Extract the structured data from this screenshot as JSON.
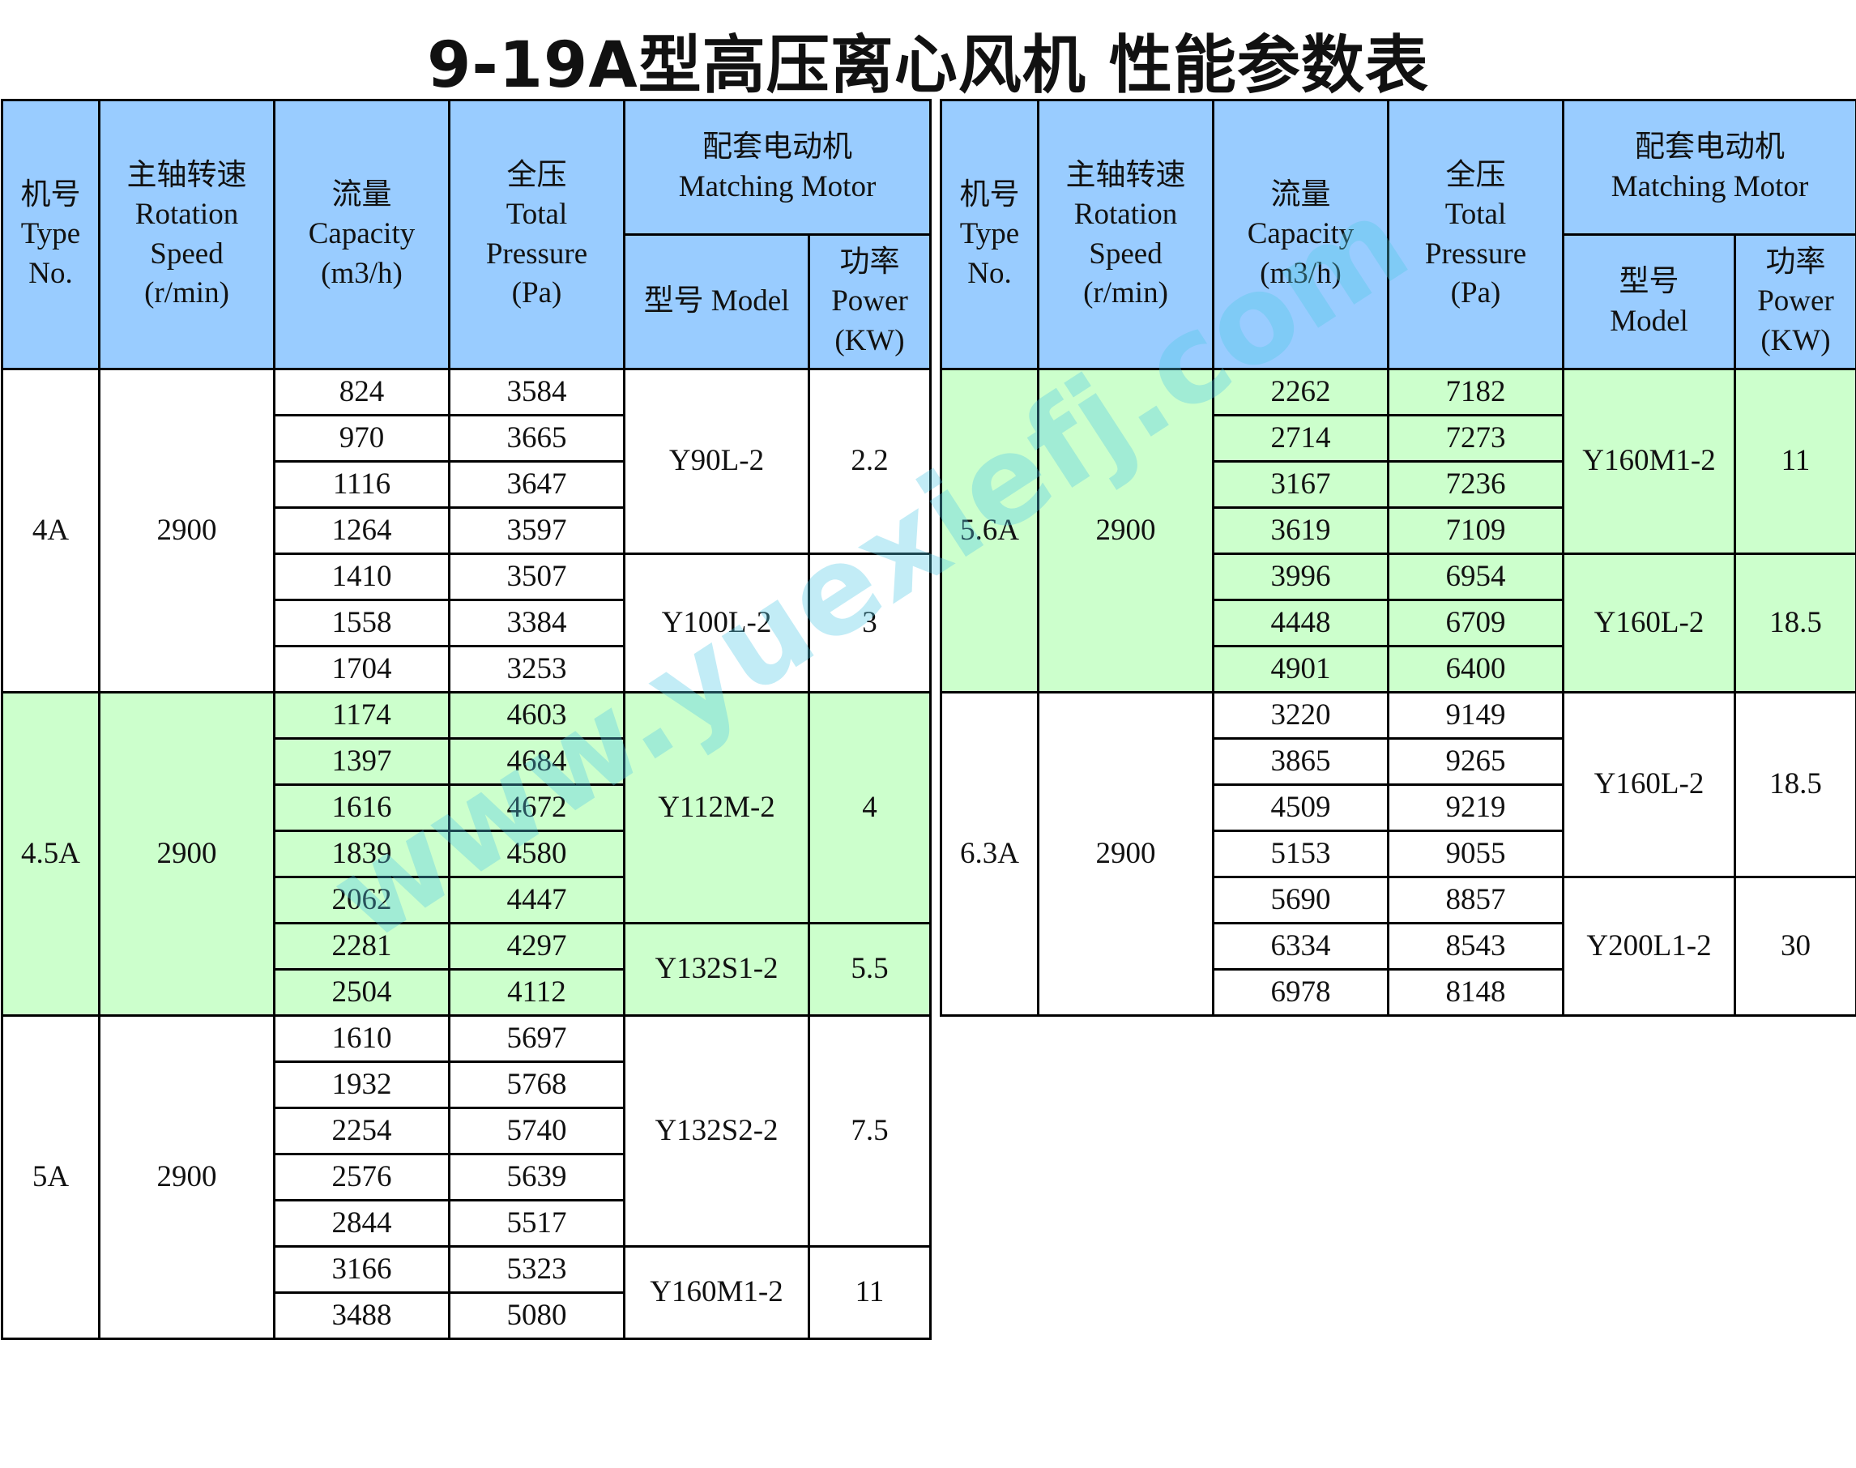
{
  "title": "9-19A型高压离心风机 性能参数表",
  "watermark": "www.yuexiefj.com",
  "colors": {
    "header": "#99ccff",
    "highlight": "#ccffcc",
    "plain": "#ffffff"
  },
  "headers": {
    "type": "机号\nType\nNo.",
    "speed": "主轴转速\nRotation\nSpeed\n(r/min)",
    "capacity": "流量\nCapacity\n(m3/h)",
    "pressure": "全压\nTotal\nPressure\n(Pa)",
    "motor": "配套电动机\nMatching Motor",
    "model_left": "型号 Model",
    "model_right": "型号\nModel",
    "power": "功率\nPower\n(KW)"
  },
  "left_table": [
    {
      "type": "4A",
      "speed": "2900",
      "highlight": false,
      "rows": [
        [
          "824",
          "3584"
        ],
        [
          "970",
          "3665"
        ],
        [
          "1116",
          "3647"
        ],
        [
          "1264",
          "3597"
        ],
        [
          "1410",
          "3507"
        ],
        [
          "1558",
          "3384"
        ],
        [
          "1704",
          "3253"
        ]
      ],
      "motors": [
        {
          "model": "Y90L-2",
          "power": "2.2",
          "span": 4
        },
        {
          "model": "Y100L-2",
          "power": "3",
          "span": 3
        }
      ]
    },
    {
      "type": "4.5A",
      "speed": "2900",
      "highlight": true,
      "rows": [
        [
          "1174",
          "4603"
        ],
        [
          "1397",
          "4684"
        ],
        [
          "1616",
          "4672"
        ],
        [
          "1839",
          "4580"
        ],
        [
          "2062",
          "4447"
        ],
        [
          "2281",
          "4297"
        ],
        [
          "2504",
          "4112"
        ]
      ],
      "motors": [
        {
          "model": "Y112M-2",
          "power": "4",
          "span": 5
        },
        {
          "model": "Y132S1-2",
          "power": "5.5",
          "span": 2
        }
      ]
    },
    {
      "type": "5A",
      "speed": "2900",
      "highlight": false,
      "rows": [
        [
          "1610",
          "5697"
        ],
        [
          "1932",
          "5768"
        ],
        [
          "2254",
          "5740"
        ],
        [
          "2576",
          "5639"
        ],
        [
          "2844",
          "5517"
        ],
        [
          "3166",
          "5323"
        ],
        [
          "3488",
          "5080"
        ]
      ],
      "motors": [
        {
          "model": "Y132S2-2",
          "power": "7.5",
          "span": 5
        },
        {
          "model": "Y160M1-2",
          "power": "11",
          "span": 2
        }
      ]
    }
  ],
  "right_table": [
    {
      "type": "5.6A",
      "speed": "2900",
      "highlight": true,
      "rows": [
        [
          "2262",
          "7182"
        ],
        [
          "2714",
          "7273"
        ],
        [
          "3167",
          "7236"
        ],
        [
          "3619",
          "7109"
        ],
        [
          "3996",
          "6954"
        ],
        [
          "4448",
          "6709"
        ],
        [
          "4901",
          "6400"
        ]
      ],
      "motors": [
        {
          "model": "Y160M1-2",
          "power": "11",
          "span": 4
        },
        {
          "model": "Y160L-2",
          "power": "18.5",
          "span": 3
        }
      ]
    },
    {
      "type": "6.3A",
      "speed": "2900",
      "highlight": false,
      "rows": [
        [
          "3220",
          "9149"
        ],
        [
          "3865",
          "9265"
        ],
        [
          "4509",
          "9219"
        ],
        [
          "5153",
          "9055"
        ],
        [
          "5690",
          "8857"
        ],
        [
          "6334",
          "8543"
        ],
        [
          "6978",
          "8148"
        ]
      ],
      "motors": [
        {
          "model": "Y160L-2",
          "power": "18.5",
          "span": 4
        },
        {
          "model": "Y200L1-2",
          "power": "30",
          "span": 3
        }
      ]
    }
  ]
}
